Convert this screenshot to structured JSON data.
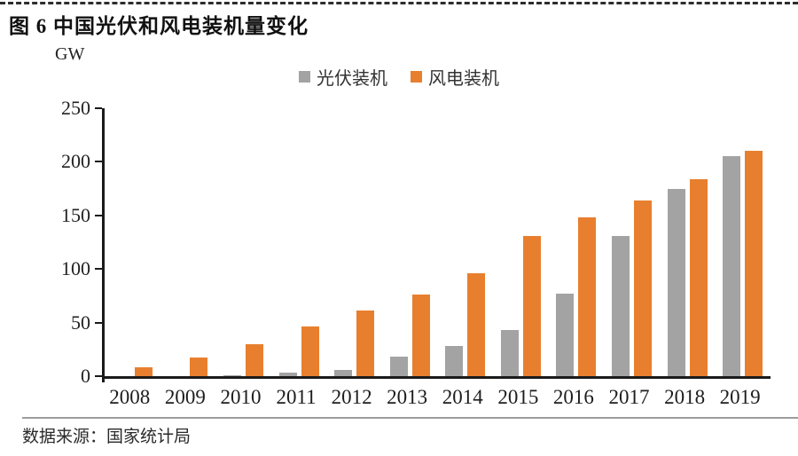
{
  "page": {
    "title": "图 6 中国光伏和风电装机量变化",
    "source": "数据来源：国家统计局"
  },
  "chart_data": {
    "type": "bar",
    "title": "图 6 中国光伏和风电装机量变化",
    "unit_label": "GW",
    "categories": [
      "2008",
      "2009",
      "2010",
      "2011",
      "2012",
      "2013",
      "2014",
      "2015",
      "2016",
      "2017",
      "2018",
      "2019"
    ],
    "series": [
      {
        "name": "光伏装机",
        "color": "#a3a3a3",
        "values": [
          0,
          0,
          1,
          3,
          6,
          18,
          28,
          43,
          77,
          131,
          175,
          205
        ]
      },
      {
        "name": "风电装机",
        "color": "#e87f2e",
        "values": [
          8,
          17,
          30,
          46,
          61,
          76,
          96,
          131,
          148,
          164,
          184,
          210
        ]
      }
    ],
    "ylabel": "GW",
    "xlabel": "",
    "ylim": [
      0,
      250
    ],
    "yticks": [
      0,
      50,
      100,
      150,
      200,
      250
    ],
    "grid": false,
    "legend_position": "top-center",
    "axis_color": "#1b1b1b"
  }
}
